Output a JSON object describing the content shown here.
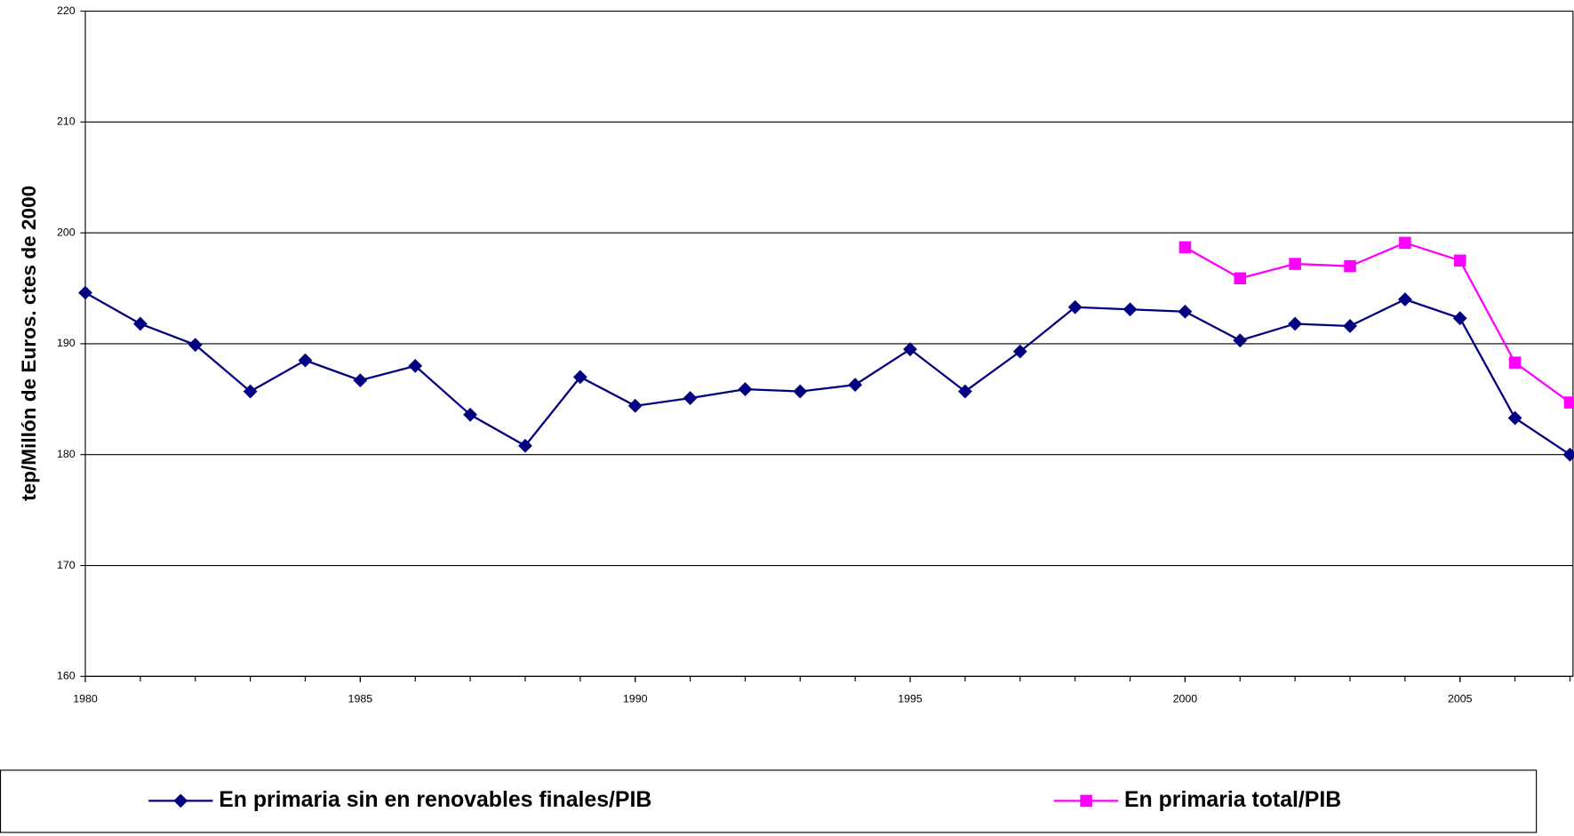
{
  "chart_data": {
    "type": "line",
    "y_label": "tep/Millón de Euros. ctes de 2000",
    "x": [
      1980,
      1981,
      1982,
      1983,
      1984,
      1985,
      1986,
      1987,
      1988,
      1989,
      1990,
      1991,
      1992,
      1993,
      1994,
      1995,
      1996,
      1997,
      1998,
      1999,
      2000,
      2001,
      2002,
      2003,
      2004,
      2005,
      2006,
      2007
    ],
    "series": [
      {
        "name": "En primaria sin en renovables finales/PIB",
        "color": "#000080",
        "marker": "diamond",
        "values": [
          194.6,
          191.8,
          189.9,
          185.7,
          188.5,
          186.7,
          188.0,
          183.6,
          180.8,
          187.0,
          184.4,
          185.1,
          185.9,
          185.7,
          186.3,
          189.5,
          185.7,
          189.3,
          193.3,
          193.1,
          192.9,
          190.3,
          191.8,
          191.6,
          194.0,
          192.3,
          183.3,
          180.0
        ]
      },
      {
        "name": "En primaria total/PIB",
        "color": "#ff00ff",
        "marker": "square",
        "values": [
          null,
          null,
          null,
          null,
          null,
          null,
          null,
          null,
          null,
          null,
          null,
          null,
          null,
          null,
          null,
          null,
          null,
          null,
          null,
          null,
          198.7,
          195.9,
          197.2,
          197.0,
          199.1,
          197.5,
          188.3,
          184.7
        ]
      }
    ],
    "xlim": [
      1980,
      2007
    ],
    "xticks": [
      1980,
      1985,
      1990,
      1995,
      2000,
      2005
    ],
    "ylim": [
      160,
      220
    ],
    "yticks": [
      160,
      170,
      180,
      190,
      200,
      210,
      220
    ],
    "grid": true,
    "legend": "bottom"
  }
}
